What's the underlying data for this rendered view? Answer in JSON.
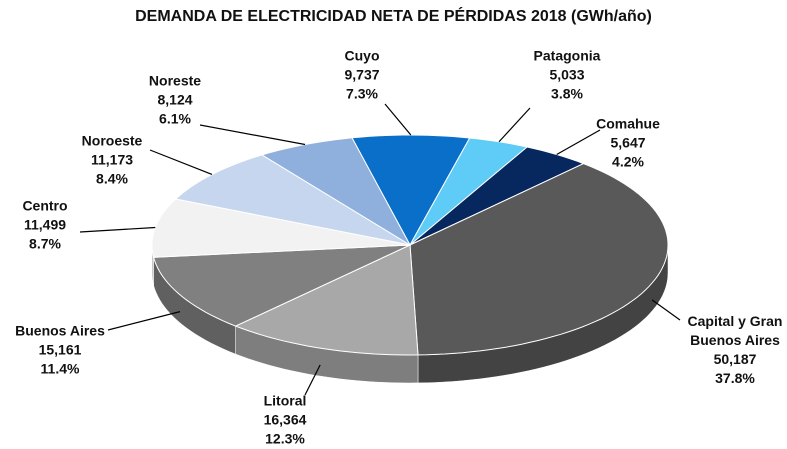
{
  "chart_data": {
    "type": "pie",
    "title": "DEMANDA DE ELECTRICIDAD NETA DE PÉRDIDAS 2018 (GWh/año)",
    "categories": [
      "Cuyo",
      "Patagonia",
      "Comahue",
      "Capital y Gran Buenos Aires",
      "Litoral",
      "Buenos Aires",
      "Centro",
      "Noroeste",
      "Noreste"
    ],
    "values": [
      9737,
      5033,
      5647,
      50187,
      16364,
      15161,
      11499,
      11173,
      8124
    ],
    "value_labels": [
      "9,737",
      "5,033",
      "5,647",
      "50,187",
      "16,364",
      "15,161",
      "11,499",
      "11,173",
      "8,124"
    ],
    "percent_labels": [
      "7.3%",
      "3.8%",
      "4.2%",
      "37.8%",
      "12.3%",
      "11.4%",
      "8.7%",
      "8.4%",
      "6.1%"
    ],
    "colors": [
      "#0a6fc9",
      "#5fcbf7",
      "#06285e",
      "#595959",
      "#a8a8a8",
      "#808080",
      "#f2f2f2",
      "#c6d6ee",
      "#8fb0dc"
    ],
    "startangle": -13
  }
}
